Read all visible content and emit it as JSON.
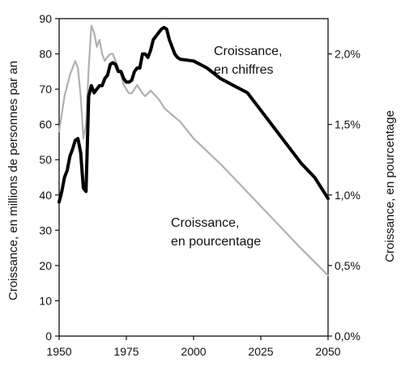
{
  "chart_data": {
    "type": "line",
    "title": "",
    "xlabel": "",
    "ylabel_left": "Croissance, en millions de personnes par an",
    "ylabel_right": "Croissance, en pourcentage",
    "xlim": [
      1950,
      2050
    ],
    "ylim_left": [
      0,
      90
    ],
    "ylim_right": [
      0.0,
      2.25
    ],
    "grid": false,
    "x_ticks": [
      "1950",
      "1975",
      "2000",
      "2025",
      "2050"
    ],
    "y_left_ticks": [
      "0",
      "10",
      "20",
      "30",
      "40",
      "50",
      "60",
      "70",
      "80",
      "90"
    ],
    "y_right_ticks": [
      "0,0%",
      "0,5%",
      "1,0%",
      "1,5%",
      "2,0%"
    ],
    "annotations": {
      "chiffres_line1": "Croissance,",
      "chiffres_line2": "en chiffres",
      "pourcentage_line1": "Croissance,",
      "pourcentage_line2": "en pourcentage"
    },
    "series": [
      {
        "name": "Croissance, en chiffres",
        "axis": "left",
        "color": "#000000",
        "x": [
          1950,
          1951,
          1952,
          1953,
          1954,
          1955,
          1956,
          1957,
          1958,
          1959,
          1960,
          1961,
          1962,
          1963,
          1964,
          1965,
          1966,
          1967,
          1968,
          1969,
          1970,
          1971,
          1972,
          1973,
          1974,
          1975,
          1976,
          1977,
          1978,
          1979,
          1980,
          1981,
          1982,
          1983,
          1984,
          1985,
          1986,
          1987,
          1988,
          1989,
          1990,
          1991,
          1992,
          1993,
          1994,
          1995,
          2000,
          2005,
          2010,
          2015,
          2020,
          2025,
          2030,
          2035,
          2040,
          2045,
          2050
        ],
        "values": [
          38,
          41,
          45,
          47,
          51,
          53,
          55.5,
          56,
          52,
          42,
          41,
          68,
          71,
          69,
          70,
          71,
          71,
          73,
          74,
          77,
          77.5,
          77,
          75,
          75,
          73,
          72,
          72,
          72.5,
          75,
          76,
          76,
          80,
          80,
          79,
          81,
          84,
          85,
          86,
          87,
          87.5,
          87,
          84,
          82,
          80,
          79,
          78.5,
          78,
          76,
          73,
          71,
          69,
          64,
          59,
          54,
          49,
          45,
          39
        ]
      },
      {
        "name": "Croissance, en pourcentage",
        "axis": "right",
        "color": "#b0b0b0",
        "x": [
          1950,
          1952,
          1954,
          1956,
          1957,
          1958,
          1959,
          1960,
          1961,
          1962,
          1963,
          1964,
          1965,
          1966,
          1967,
          1968,
          1969,
          1970,
          1971,
          1972,
          1973,
          1974,
          1975,
          1976,
          1977,
          1978,
          1979,
          1980,
          1981,
          1982,
          1983,
          1984,
          1985,
          1986,
          1987,
          1988,
          1989,
          1990,
          1995,
          2000,
          2010,
          2020,
          2030,
          2040,
          2050
        ],
        "values": [
          1.45,
          1.7,
          1.85,
          1.95,
          1.9,
          1.7,
          1.4,
          1.5,
          1.9,
          2.2,
          2.15,
          2.05,
          2.1,
          2.0,
          1.95,
          1.98,
          2.0,
          2.0,
          1.95,
          1.9,
          1.85,
          1.78,
          1.75,
          1.72,
          1.72,
          1.75,
          1.78,
          1.75,
          1.72,
          1.7,
          1.72,
          1.74,
          1.72,
          1.7,
          1.68,
          1.65,
          1.62,
          1.6,
          1.52,
          1.4,
          1.22,
          1.02,
          0.82,
          0.62,
          0.43
        ]
      }
    ]
  }
}
